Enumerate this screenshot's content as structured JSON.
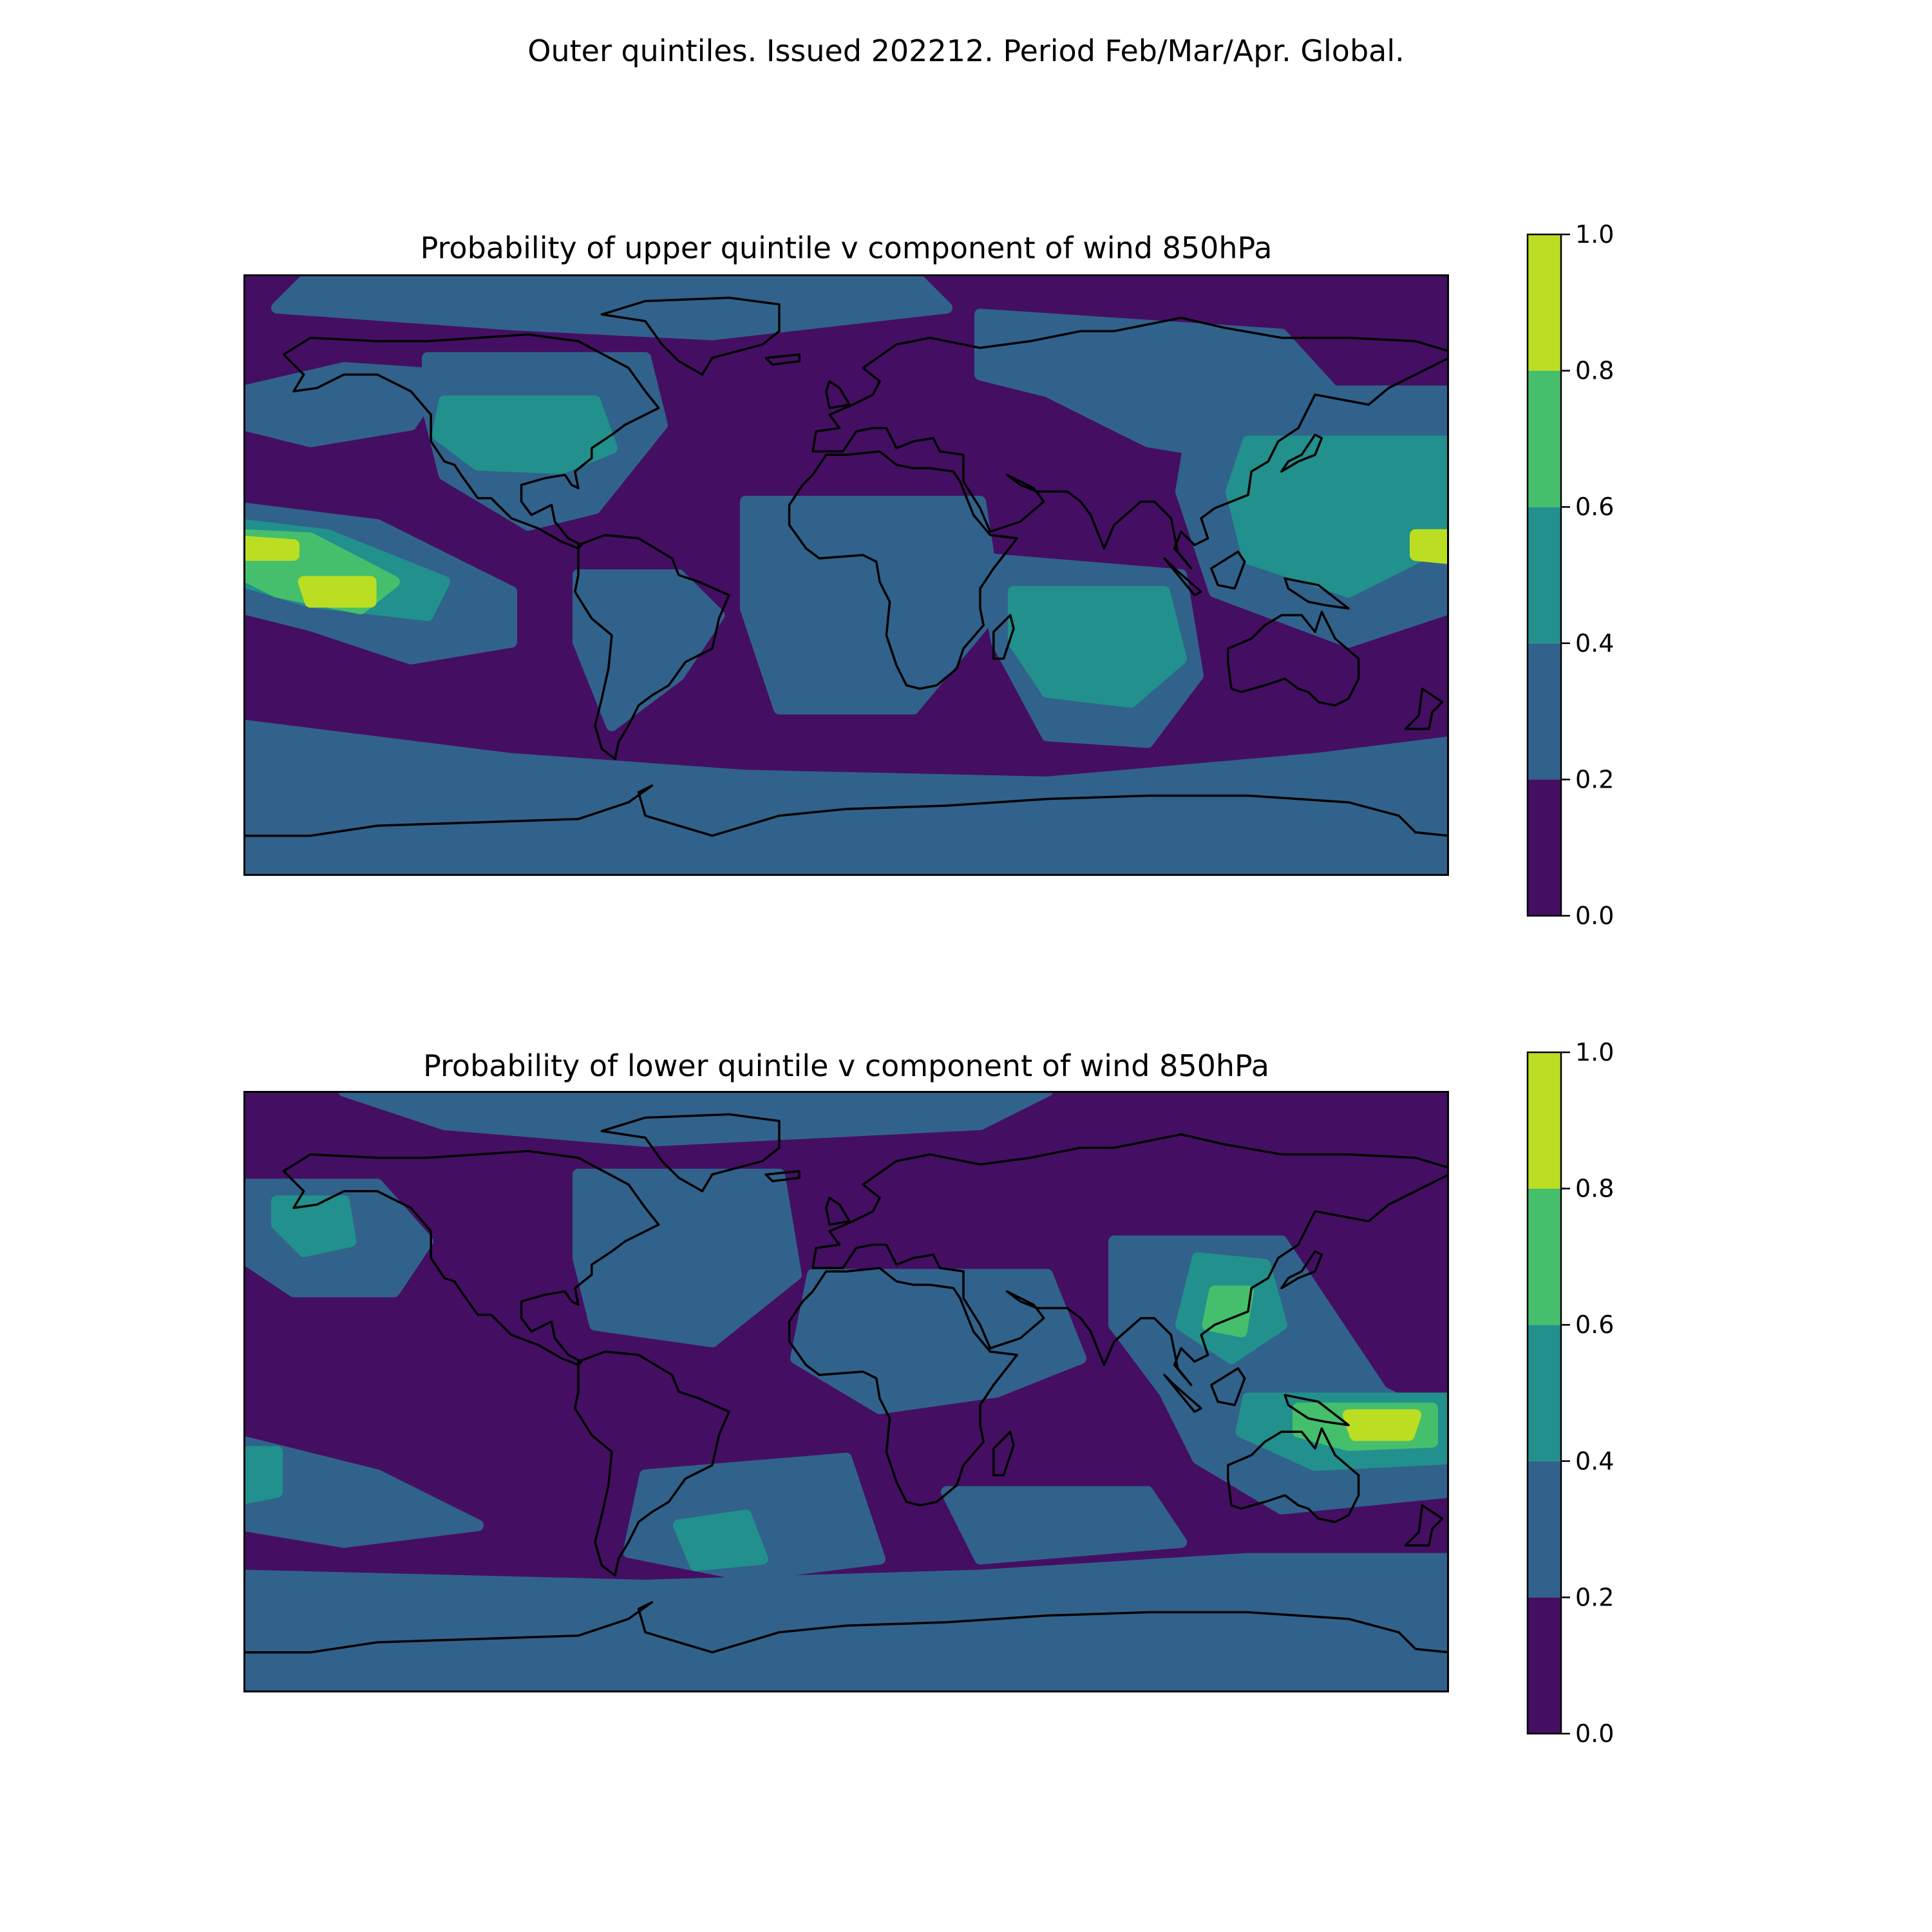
{
  "figure": {
    "suptitle": "Outer quintiles. Issued 202212. Period Feb/Mar/Apr. Global."
  },
  "colorbar": {
    "levels": [
      0.0,
      0.2,
      0.4,
      0.6,
      0.8,
      1.0
    ],
    "tick_labels": [
      "0.0",
      "0.2",
      "0.4",
      "0.6",
      "0.8",
      "1.0"
    ],
    "colors": [
      "#440f62",
      "#31628b",
      "#22908c",
      "#46bf6c",
      "#bcde22"
    ]
  },
  "panels": [
    {
      "title": "Probability of upper quintile v component of wind 850hPa",
      "background_level": 0,
      "regions": [
        {
          "name": "north-pacific-ocean",
          "level": 1,
          "points": [
            [
              -180,
              55
            ],
            [
              -150,
              62
            ],
            [
              -120,
              60
            ],
            [
              -130,
              45
            ],
            [
              -160,
              40
            ],
            [
              -180,
              45
            ]
          ]
        },
        {
          "name": "north-america",
          "level": 1,
          "points": [
            [
              -125,
              65
            ],
            [
              -60,
              65
            ],
            [
              -55,
              45
            ],
            [
              -75,
              20
            ],
            [
              -95,
              15
            ],
            [
              -120,
              30
            ],
            [
              -125,
              50
            ]
          ]
        },
        {
          "name": "usa-canada",
          "level": 2,
          "points": [
            [
              -120,
              52
            ],
            [
              -75,
              52
            ],
            [
              -70,
              38
            ],
            [
              -85,
              32
            ],
            [
              -110,
              33
            ],
            [
              -122,
              42
            ]
          ]
        },
        {
          "name": "arctic",
          "level": 1,
          "points": [
            [
              -160,
              90
            ],
            [
              20,
              90
            ],
            [
              30,
              80
            ],
            [
              -40,
              72
            ],
            [
              -100,
              75
            ],
            [
              -170,
              80
            ]
          ]
        },
        {
          "name": "atlantic-africa",
          "level": 1,
          "points": [
            [
              -30,
              22
            ],
            [
              40,
              22
            ],
            [
              45,
              -10
            ],
            [
              20,
              -40
            ],
            [
              -20,
              -40
            ],
            [
              -30,
              -10
            ]
          ]
        },
        {
          "name": "eurasia",
          "level": 1,
          "points": [
            [
              40,
              78
            ],
            [
              130,
              72
            ],
            [
              150,
              50
            ],
            [
              120,
              35
            ],
            [
              90,
              40
            ],
            [
              60,
              55
            ],
            [
              40,
              60
            ]
          ]
        },
        {
          "name": "tropical-east-pacific",
          "level": 1,
          "points": [
            [
              -180,
              20
            ],
            [
              -140,
              15
            ],
            [
              -100,
              -5
            ],
            [
              -100,
              -20
            ],
            [
              -130,
              -25
            ],
            [
              -160,
              -15
            ],
            [
              -180,
              -10
            ]
          ]
        },
        {
          "name": "tropical-pacific-band",
          "level": 2,
          "points": [
            [
              -180,
              15
            ],
            [
              -155,
              12
            ],
            [
              -120,
              -2
            ],
            [
              -125,
              -12
            ],
            [
              -160,
              -8
            ],
            [
              -180,
              -2
            ]
          ]
        },
        {
          "name": "tropical-pacific-core",
          "level": 3,
          "points": [
            [
              -180,
              12
            ],
            [
              -160,
              11
            ],
            [
              -135,
              -2
            ],
            [
              -145,
              -10
            ],
            [
              -170,
              -5
            ],
            [
              -180,
              0
            ]
          ]
        },
        {
          "name": "pacific-maximum-north",
          "level": 4,
          "points": [
            [
              -180,
              10
            ],
            [
              -165,
              9
            ],
            [
              -165,
              6
            ],
            [
              -180,
              6
            ]
          ]
        },
        {
          "name": "pacific-maximum-south",
          "level": 4,
          "points": [
            [
              -162,
              -2
            ],
            [
              -142,
              -2
            ],
            [
              -142,
              -8
            ],
            [
              -160,
              -8
            ]
          ]
        },
        {
          "name": "indian-ocean",
          "level": 1,
          "points": [
            [
              40,
              5
            ],
            [
              100,
              0
            ],
            [
              105,
              -30
            ],
            [
              90,
              -50
            ],
            [
              60,
              -48
            ],
            [
              45,
              -20
            ]
          ]
        },
        {
          "name": "indian-ocean-core",
          "level": 2,
          "points": [
            [
              50,
              -5
            ],
            [
              95,
              -5
            ],
            [
              100,
              -25
            ],
            [
              85,
              -38
            ],
            [
              60,
              -35
            ],
            [
              50,
              -20
            ]
          ]
        },
        {
          "name": "west-pacific",
          "level": 1,
          "points": [
            [
              105,
              55
            ],
            [
              180,
              55
            ],
            [
              180,
              -10
            ],
            [
              150,
              -20
            ],
            [
              110,
              -5
            ],
            [
              100,
              25
            ]
          ]
        },
        {
          "name": "west-pacific-core",
          "level": 2,
          "points": [
            [
              120,
              40
            ],
            [
              180,
              40
            ],
            [
              180,
              10
            ],
            [
              150,
              -5
            ],
            [
              120,
              5
            ],
            [
              115,
              25
            ]
          ]
        },
        {
          "name": "west-pacific-maximum",
          "level": 4,
          "points": [
            [
              170,
              12
            ],
            [
              180,
              12
            ],
            [
              180,
              5
            ],
            [
              170,
              6
            ]
          ]
        },
        {
          "name": "southern-ocean",
          "level": 1,
          "points": [
            [
              -180,
              -45
            ],
            [
              -100,
              -55
            ],
            [
              -30,
              -60
            ],
            [
              60,
              -62
            ],
            [
              140,
              -55
            ],
            [
              180,
              -50
            ],
            [
              180,
              -90
            ],
            [
              -180,
              -90
            ]
          ]
        },
        {
          "name": "south-america",
          "level": 1,
          "points": [
            [
              -80,
              0
            ],
            [
              -50,
              0
            ],
            [
              -38,
              -12
            ],
            [
              -50,
              -30
            ],
            [
              -70,
              -45
            ],
            [
              -80,
              -20
            ]
          ]
        }
      ]
    },
    {
      "title": "Probability of lower quintile v component of wind 850hPa",
      "background_level": 0,
      "regions": [
        {
          "name": "north-pacific-ocean",
          "level": 1,
          "points": [
            [
              -180,
              62
            ],
            [
              -140,
              62
            ],
            [
              -125,
              45
            ],
            [
              -135,
              30
            ],
            [
              -165,
              30
            ],
            [
              -180,
              40
            ]
          ]
        },
        {
          "name": "north-pacific-core",
          "level": 2,
          "points": [
            [
              -170,
              57
            ],
            [
              -150,
              57
            ],
            [
              -148,
              45
            ],
            [
              -162,
              42
            ],
            [
              -170,
              50
            ]
          ]
        },
        {
          "name": "north-atlantic",
          "level": 1,
          "points": [
            [
              -80,
              65
            ],
            [
              -20,
              65
            ],
            [
              -15,
              35
            ],
            [
              -40,
              15
            ],
            [
              -75,
              20
            ],
            [
              -80,
              40
            ]
          ]
        },
        {
          "name": "arctic",
          "level": 1,
          "points": [
            [
              -150,
              90
            ],
            [
              60,
              90
            ],
            [
              40,
              80
            ],
            [
              -60,
              75
            ],
            [
              -120,
              80
            ]
          ]
        },
        {
          "name": "africa-arabia",
          "level": 1,
          "points": [
            [
              -10,
              35
            ],
            [
              60,
              35
            ],
            [
              70,
              10
            ],
            [
              45,
              0
            ],
            [
              10,
              -5
            ],
            [
              -15,
              10
            ]
          ]
        },
        {
          "name": "asia-maritime",
          "level": 1,
          "points": [
            [
              80,
              45
            ],
            [
              130,
              45
            ],
            [
              160,
              0
            ],
            [
              180,
              -10
            ],
            [
              180,
              -30
            ],
            [
              130,
              -35
            ],
            [
              105,
              -20
            ],
            [
              95,
              0
            ],
            [
              80,
              20
            ]
          ]
        },
        {
          "name": "east-asia-core",
          "level": 2,
          "points": [
            [
              105,
              40
            ],
            [
              125,
              38
            ],
            [
              130,
              20
            ],
            [
              115,
              10
            ],
            [
              100,
              20
            ]
          ]
        },
        {
          "name": "east-asia-maximum",
          "level": 3,
          "points": [
            [
              110,
              30
            ],
            [
              120,
              30
            ],
            [
              118,
              18
            ],
            [
              108,
              20
            ]
          ]
        },
        {
          "name": "maritime-continent-core",
          "level": 2,
          "points": [
            [
              120,
              -2
            ],
            [
              180,
              -2
            ],
            [
              180,
              -20
            ],
            [
              140,
              -22
            ],
            [
              118,
              -12
            ]
          ]
        },
        {
          "name": "maritime-continent-band",
          "level": 3,
          "points": [
            [
              135,
              -5
            ],
            [
              175,
              -5
            ],
            [
              175,
              -15
            ],
            [
              150,
              -16
            ],
            [
              135,
              -12
            ]
          ]
        },
        {
          "name": "maritime-continent-maximum",
          "level": 4,
          "points": [
            [
              150,
              -7
            ],
            [
              170,
              -7
            ],
            [
              168,
              -13
            ],
            [
              152,
              -13
            ]
          ]
        },
        {
          "name": "southeast-pacific",
          "level": 1,
          "points": [
            [
              -180,
              -15
            ],
            [
              -140,
              -25
            ],
            [
              -110,
              -40
            ],
            [
              -150,
              -45
            ],
            [
              -180,
              -40
            ]
          ]
        },
        {
          "name": "southeast-pacific-core",
          "level": 2,
          "points": [
            [
              -180,
              -18
            ],
            [
              -170,
              -18
            ],
            [
              -170,
              -30
            ],
            [
              -180,
              -32
            ]
          ]
        },
        {
          "name": "south-atlantic",
          "level": 1,
          "points": [
            [
              -60,
              -25
            ],
            [
              0,
              -20
            ],
            [
              10,
              -50
            ],
            [
              -30,
              -55
            ],
            [
              -65,
              -48
            ]
          ]
        },
        {
          "name": "south-atlantic-core",
          "level": 2,
          "points": [
            [
              -50,
              -40
            ],
            [
              -30,
              -37
            ],
            [
              -25,
              -50
            ],
            [
              -45,
              -52
            ]
          ]
        },
        {
          "name": "southern-ocean",
          "level": 1,
          "points": [
            [
              -180,
              -55
            ],
            [
              -60,
              -58
            ],
            [
              40,
              -55
            ],
            [
              120,
              -50
            ],
            [
              180,
              -50
            ],
            [
              180,
              -90
            ],
            [
              -180,
              -90
            ]
          ]
        },
        {
          "name": "south-indian-ocean",
          "level": 1,
          "points": [
            [
              30,
              -30
            ],
            [
              90,
              -30
            ],
            [
              100,
              -45
            ],
            [
              40,
              -50
            ]
          ]
        }
      ]
    }
  ]
}
